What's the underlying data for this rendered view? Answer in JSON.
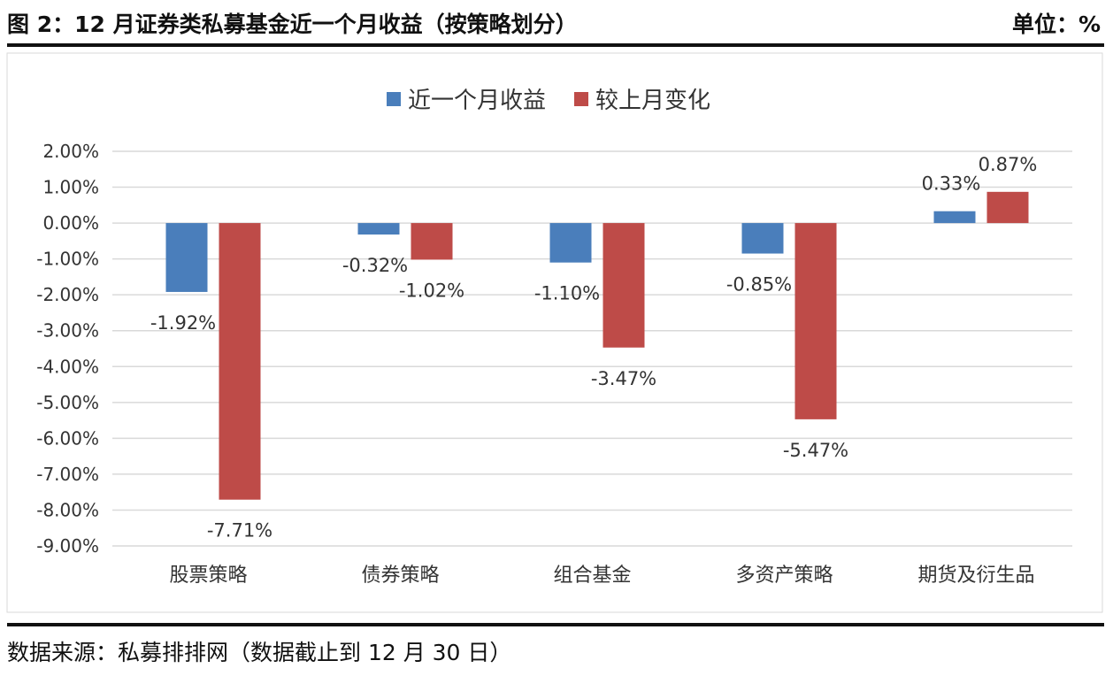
{
  "header": {
    "title": "图 2：12 月证券类私募基金近一个月收益（按策略划分）",
    "unit": "单位：%"
  },
  "footer": {
    "source": "数据来源：私募排排网（数据截止到 12 月 30 日）"
  },
  "chart_data": {
    "type": "bar",
    "categories": [
      "股票策略",
      "债券策略",
      "组合基金",
      "多资产策略",
      "期货及衍生品"
    ],
    "series": [
      {
        "name": "近一个月收益",
        "color": "#4a7ebb",
        "values": [
          -1.92,
          -0.32,
          -1.1,
          -0.85,
          0.33
        ]
      },
      {
        "name": "较上月变化",
        "color": "#be4b48",
        "values": [
          -7.71,
          -1.02,
          -3.47,
          -5.47,
          0.87
        ]
      }
    ],
    "ylim": [
      -9,
      2
    ],
    "yticks": [
      "2.00%",
      "1.00%",
      "0.00%",
      "-1.00%",
      "-2.00%",
      "-3.00%",
      "-4.00%",
      "-5.00%",
      "-6.00%",
      "-7.00%",
      "-8.00%",
      "-9.00%"
    ],
    "grid": true,
    "legend": "top",
    "data_labels": true
  }
}
